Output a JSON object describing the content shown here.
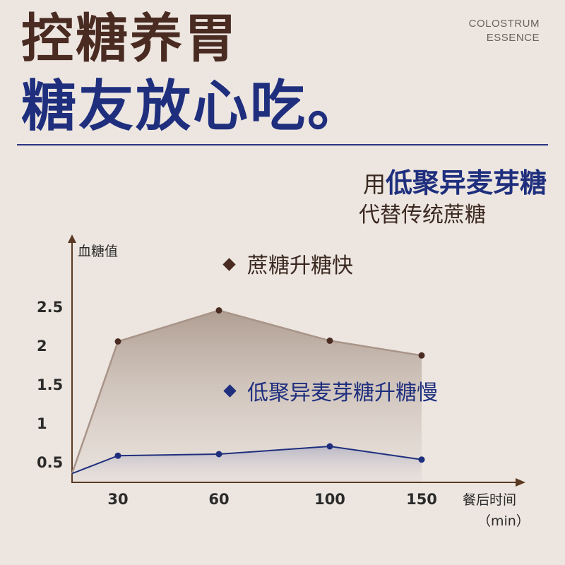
{
  "header": {
    "title_line1": "控糖养胃",
    "title_line2": "糖友放心吃。",
    "brand_line1": "COLOSTRUM",
    "brand_line2": "ESSENCE",
    "sub_prefix": "用",
    "sub_highlight": "低聚异麦芽糖",
    "sub_line2": "代替传统蔗糖"
  },
  "colors": {
    "brown": "#4a2b22",
    "navy": "#1f2f7e",
    "background": "#ede6e0",
    "axis": "#5a3a22"
  },
  "chart_data": {
    "type": "line",
    "ylabel": "血糖值",
    "xlabel_line1": "餐后时间",
    "xlabel_line2": "（min）",
    "x_ticks": [
      "30",
      "60",
      "100",
      "150"
    ],
    "y_ticks": [
      "0.5",
      "1",
      "1.5",
      "2",
      "2.5"
    ],
    "series": [
      {
        "name": "蔗糖升糖快",
        "color": "#4a2b22",
        "points": [
          [
            30,
            2.05
          ],
          [
            60,
            2.45
          ],
          [
            100,
            2.06
          ],
          [
            150,
            1.87
          ]
        ]
      },
      {
        "name": "低聚异麦芽糖升糖慢",
        "color": "#1f2f7e",
        "points": [
          [
            30,
            0.58
          ],
          [
            60,
            0.6
          ],
          [
            100,
            0.7
          ],
          [
            150,
            0.53
          ]
        ]
      }
    ],
    "start_y": 0.35,
    "grid": false
  }
}
